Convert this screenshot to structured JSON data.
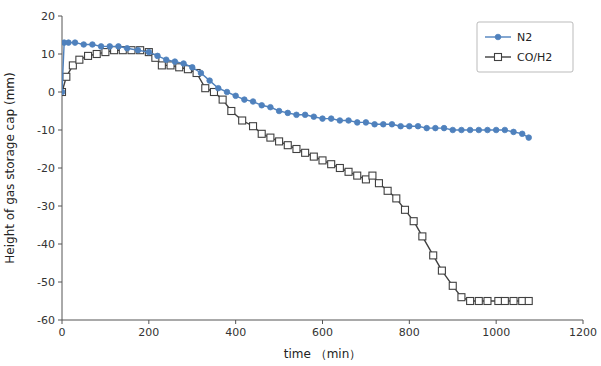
{
  "chart_data": {
    "type": "line",
    "x_label": "time （min）",
    "y_label": "Height of gas storage cap (mm)",
    "xlim": [
      0,
      1200
    ],
    "ylim": [
      -60,
      20
    ],
    "xticks": [
      0,
      200,
      400,
      600,
      800,
      1000,
      1200
    ],
    "yticks": [
      -60,
      -50,
      -40,
      -30,
      -20,
      -10,
      0,
      10,
      20
    ],
    "grid": false,
    "legend": "upper right",
    "series": [
      {
        "name": "N2",
        "color": "#4f81bd",
        "marker": "circle",
        "x": [
          0,
          5,
          15,
          30,
          50,
          70,
          90,
          110,
          130,
          150,
          175,
          200,
          220,
          240,
          260,
          280,
          300,
          320,
          340,
          360,
          380,
          400,
          420,
          440,
          460,
          480,
          500,
          520,
          540,
          560,
          580,
          600,
          620,
          640,
          660,
          680,
          700,
          720,
          740,
          760,
          780,
          800,
          820,
          840,
          860,
          880,
          900,
          920,
          940,
          960,
          980,
          1000,
          1020,
          1040,
          1060,
          1075
        ],
        "values": [
          0,
          13,
          13,
          13,
          12.5,
          12.5,
          12,
          12,
          12,
          11.5,
          11,
          10.5,
          9.5,
          8.5,
          8,
          7.5,
          6.5,
          5,
          3,
          1,
          0,
          -1,
          -2,
          -2.5,
          -3.5,
          -4,
          -5,
          -5.5,
          -6,
          -6,
          -6.5,
          -7,
          -7,
          -7.5,
          -7.5,
          -8,
          -8,
          -8.5,
          -8.5,
          -8.5,
          -9,
          -9,
          -9,
          -9.5,
          -9.5,
          -9.5,
          -10,
          -10,
          -10,
          -10,
          -10,
          -10,
          -10,
          -10.5,
          -11,
          -12
        ]
      },
      {
        "name": "CO/H2",
        "color": "#404040",
        "marker": "square",
        "x": [
          0,
          10,
          25,
          40,
          60,
          80,
          100,
          120,
          140,
          160,
          180,
          200,
          215,
          230,
          250,
          270,
          290,
          310,
          330,
          350,
          370,
          390,
          415,
          440,
          460,
          480,
          500,
          520,
          540,
          560,
          580,
          600,
          620,
          640,
          660,
          680,
          700,
          715,
          730,
          750,
          770,
          790,
          810,
          830,
          855,
          875,
          900,
          920,
          940,
          960,
          980,
          1005,
          1020,
          1040,
          1060,
          1075
        ],
        "values": [
          0,
          4,
          7,
          8.5,
          9.5,
          10,
          10.5,
          11,
          11,
          11,
          11,
          10.5,
          9,
          7,
          7,
          6.5,
          6,
          5,
          1,
          0,
          -2,
          -5,
          -7.5,
          -9,
          -11,
          -12,
          -13,
          -14,
          -15,
          -16,
          -17,
          -18,
          -19,
          -20,
          -21,
          -22,
          -23,
          -22,
          -24,
          -26,
          -28,
          -31,
          -34,
          -38,
          -43,
          -47,
          -51,
          -54,
          -55,
          -55,
          -55,
          -55,
          -55,
          -55,
          -55,
          -55
        ]
      }
    ]
  }
}
